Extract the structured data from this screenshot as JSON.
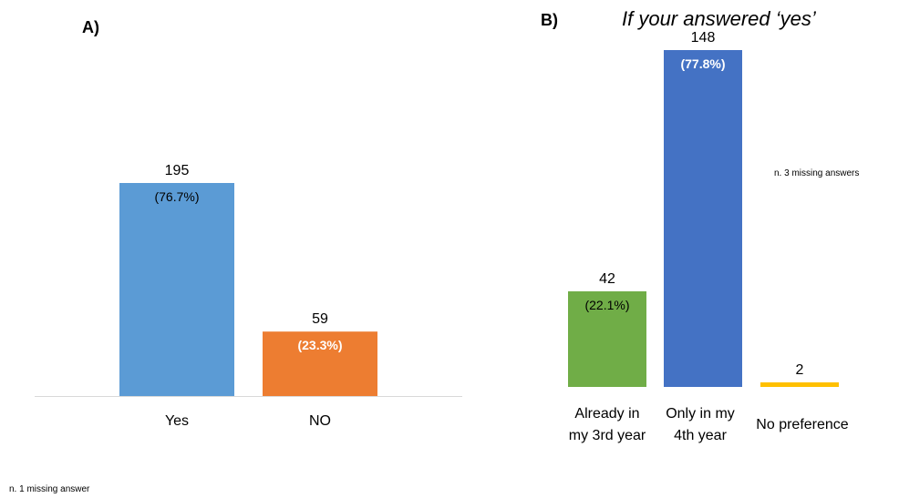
{
  "chart_data": [
    {
      "type": "bar",
      "panel_label": "A)",
      "title": "",
      "categories": [
        "Yes",
        "NO"
      ],
      "values": [
        195,
        59
      ],
      "data_labels": [
        "195",
        "59"
      ],
      "percent_labels": [
        "(76.7%)",
        "(23.3%)"
      ],
      "colors": [
        "#5B9BD5",
        "#ED7D31"
      ],
      "percent_label_colors": [
        "#000000",
        "#FFFFFF"
      ],
      "percent_label_bold": [
        false,
        true
      ],
      "xlabel": "",
      "ylabel": "",
      "ylim": [
        0,
        250
      ],
      "grid": false,
      "axis_visible": false,
      "note": "n. 1 missing answer"
    },
    {
      "type": "bar",
      "panel_label": "B)",
      "title": "If your answered ‘yes’",
      "categories": [
        "Already in my 3rd year",
        "Only in my 4th year",
        "No preference"
      ],
      "category_lines": [
        [
          "Already in",
          "my 3rd year"
        ],
        [
          "Only in my",
          "4th year"
        ],
        [
          "No preference"
        ]
      ],
      "values": [
        42,
        148,
        2
      ],
      "data_labels": [
        "42",
        "148",
        "2"
      ],
      "percent_labels": [
        "(22.1%)",
        "(77.8%)",
        ""
      ],
      "colors": [
        "#70AD47",
        "#4472C4",
        "#FFC000"
      ],
      "percent_label_colors": [
        "#000000",
        "#FFFFFF",
        "#000000"
      ],
      "percent_label_bold": [
        false,
        true,
        false
      ],
      "xlabel": "",
      "ylabel": "",
      "ylim": [
        0,
        150
      ],
      "grid": false,
      "axis_visible": false,
      "note": "n.  3 missing answers"
    }
  ]
}
